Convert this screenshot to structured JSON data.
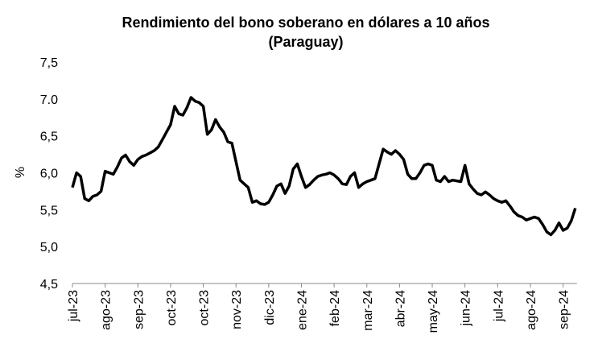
{
  "chart_data": {
    "type": "line",
    "title": "Rendimiento del bono soberano en dólares a 10 años",
    "subtitle": "(Paraguay)",
    "ylabel": "%",
    "categories": [
      "jul-23",
      null,
      null,
      null,
      null,
      null,
      null,
      null,
      "ago-23",
      null,
      null,
      null,
      null,
      null,
      null,
      null,
      "sep-23",
      null,
      null,
      null,
      null,
      null,
      null,
      null,
      "oct-23",
      null,
      null,
      null,
      null,
      null,
      null,
      null,
      "oct-23",
      null,
      null,
      null,
      null,
      null,
      null,
      null,
      "nov-23",
      null,
      null,
      null,
      null,
      null,
      null,
      null,
      "dic-23",
      null,
      null,
      null,
      null,
      null,
      null,
      null,
      "ene-24",
      null,
      null,
      null,
      null,
      null,
      null,
      null,
      "feb-24",
      null,
      null,
      null,
      null,
      null,
      null,
      null,
      "mar-24",
      null,
      null,
      null,
      null,
      null,
      null,
      null,
      "abr-24",
      null,
      null,
      null,
      null,
      null,
      null,
      null,
      "may-24",
      null,
      null,
      null,
      null,
      null,
      null,
      null,
      "jun-24",
      null,
      null,
      null,
      null,
      null,
      null,
      null,
      "jul-24",
      null,
      null,
      null,
      null,
      null,
      null,
      null,
      "ago-24",
      null,
      null,
      null,
      null,
      null,
      null,
      null,
      "sep-24",
      null,
      null,
      null
    ],
    "series": [
      {
        "name": "Rendimiento",
        "color": "#000000",
        "values": [
          5.8,
          6.0,
          5.95,
          5.65,
          5.62,
          5.68,
          5.7,
          5.75,
          6.02,
          6.0,
          5.98,
          6.08,
          6.2,
          6.24,
          6.15,
          6.1,
          6.18,
          6.22,
          6.24,
          6.27,
          6.3,
          6.35,
          6.45,
          6.55,
          6.65,
          6.9,
          6.8,
          6.78,
          6.88,
          7.02,
          6.97,
          6.95,
          6.9,
          6.52,
          6.58,
          6.72,
          6.62,
          6.55,
          6.42,
          6.4,
          6.15,
          5.9,
          5.85,
          5.8,
          5.6,
          5.62,
          5.58,
          5.57,
          5.6,
          5.7,
          5.82,
          5.85,
          5.72,
          5.82,
          6.05,
          6.12,
          5.95,
          5.8,
          5.84,
          5.9,
          5.95,
          5.97,
          5.98,
          6.0,
          5.97,
          5.92,
          5.85,
          5.84,
          5.95,
          6.0,
          5.8,
          5.85,
          5.88,
          5.9,
          5.92,
          6.12,
          6.32,
          6.28,
          6.25,
          6.3,
          6.25,
          6.18,
          5.98,
          5.92,
          5.92,
          6.0,
          6.1,
          6.12,
          6.1,
          5.9,
          5.88,
          5.95,
          5.88,
          5.9,
          5.89,
          5.88,
          6.1,
          5.85,
          5.78,
          5.72,
          5.7,
          5.74,
          5.7,
          5.65,
          5.62,
          5.6,
          5.62,
          5.55,
          5.47,
          5.42,
          5.4,
          5.36,
          5.38,
          5.4,
          5.38,
          5.3,
          5.2,
          5.16,
          5.22,
          5.32,
          5.22,
          5.25,
          5.35,
          5.52
        ]
      }
    ],
    "ylim": [
      4.5,
      7.5
    ],
    "yticks": [
      {
        "value": 4.5,
        "label": "4,5"
      },
      {
        "value": 5.0,
        "label": "5,0"
      },
      {
        "value": 5.5,
        "label": "5,5"
      },
      {
        "value": 6.0,
        "label": "6,0"
      },
      {
        "value": 6.5,
        "label": "6,5"
      },
      {
        "value": 7.0,
        "label": "7.0"
      },
      {
        "value": 7.5,
        "label": "7,5"
      }
    ],
    "grid": false
  }
}
